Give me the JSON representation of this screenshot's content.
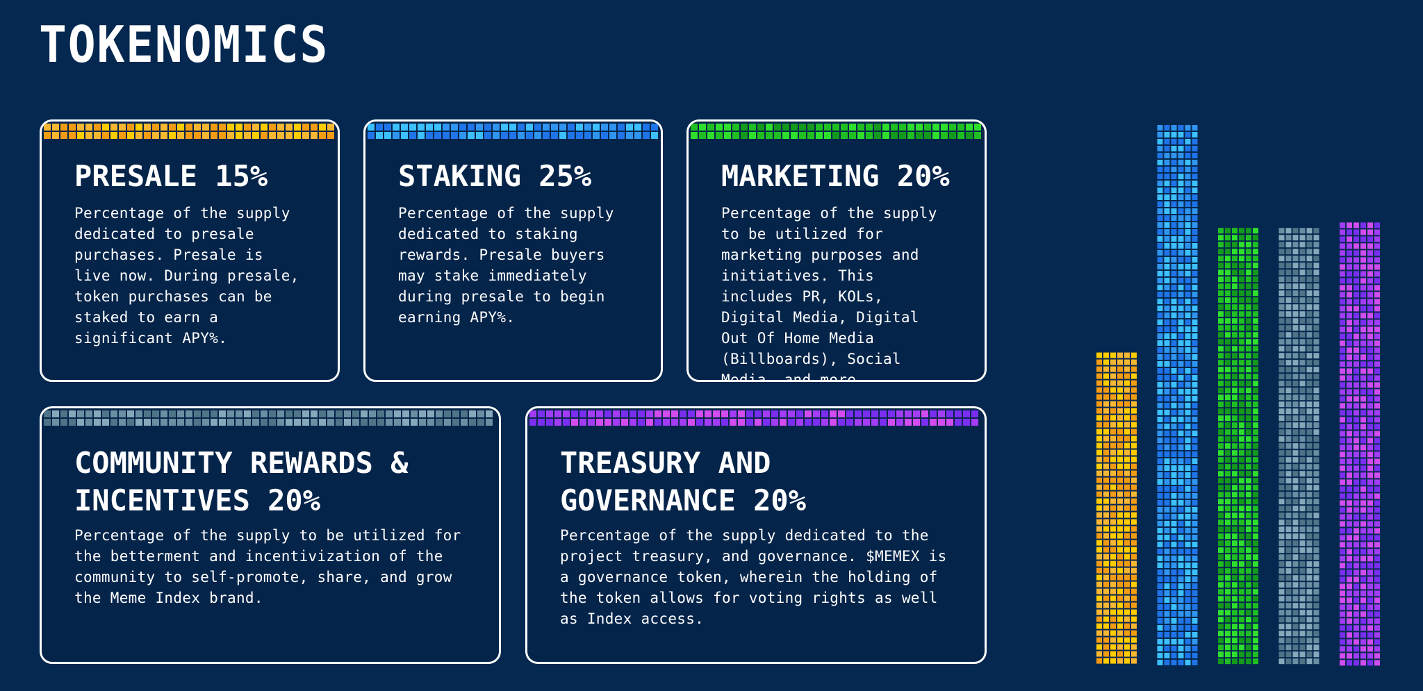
{
  "page": {
    "title": "TOKENOMICS"
  },
  "cards": [
    {
      "title": "PRESALE 15%",
      "body": "Percentage of the supply dedicated to presale purchases. Presale is live now. During presale, token purchases can be staked to earn a significant APY%.",
      "colors": [
        "#f39c12",
        "#f7b731",
        "#ffcc00"
      ]
    },
    {
      "title": "STAKING 25%",
      "body": "Percentage of the supply dedicated to staking rewards. Presale buyers may stake immediately during presale to begin earning APY%.",
      "colors": [
        "#1e74e8",
        "#2f95f0",
        "#3cc0ff"
      ]
    },
    {
      "title": "MARKETING 20%",
      "body": "Percentage of the supply to be utilized for marketing purposes and initiatives. This includes PR, KOLs, Digital Media, Digital Out Of Home Media (Billboards), Social Media, and more.",
      "colors": [
        "#139a1c",
        "#1fbf22",
        "#2ee02c"
      ]
    },
    {
      "title": "COMMUNITY REWARDS & INCENTIVES 20%",
      "body": "Percentage of the supply to be utilized for the betterment and incentivization of the community to self-promote, share, and grow the Meme Index brand.",
      "colors": [
        "#4f7488",
        "#6a8fa2",
        "#86a9ba"
      ]
    },
    {
      "title": "TREASURY AND GOVERNANCE 20%",
      "body": "Percentage of the supply dedicated to the project treasury, and governance. $MEMEX is a governance token, wherein the holding of the token allows for voting rights as well as Index access.",
      "colors": [
        "#7a2ff0",
        "#a33cf5",
        "#d24cf0"
      ]
    }
  ],
  "bar_graphic": {
    "values": [
      15,
      25,
      20,
      20,
      20
    ],
    "heights": [
      0.58,
      1.0,
      0.81,
      0.81,
      0.82
    ]
  }
}
